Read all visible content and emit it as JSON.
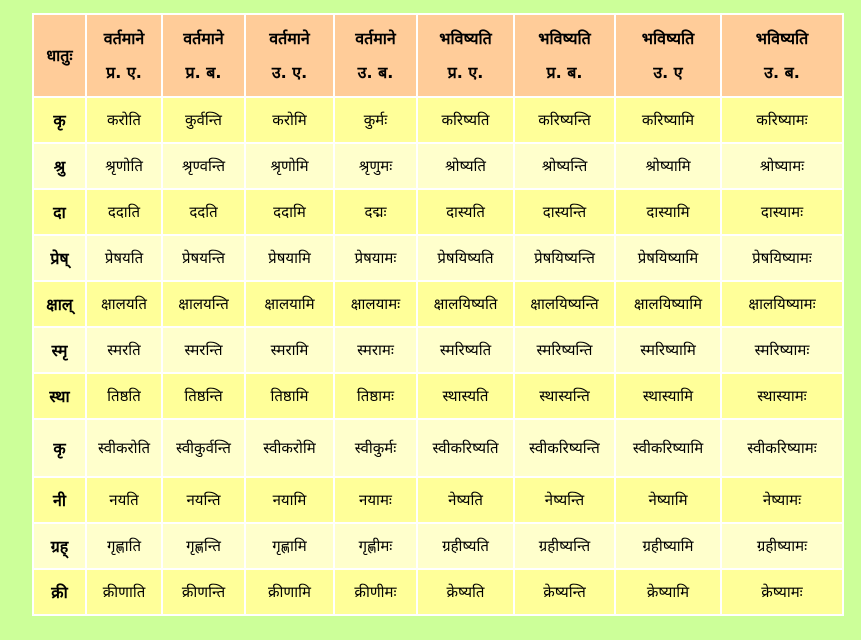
{
  "colors": {
    "page_bg": "#ccff99",
    "header_bg": "#ffcc99",
    "row_odd": "#ffff99",
    "row_even": "#ffffcc",
    "border": "#ffffff"
  },
  "table": {
    "headers": [
      {
        "line1": "धातुः",
        "line2": ""
      },
      {
        "line1": "वर्तमाने",
        "line2": "प्र. ए."
      },
      {
        "line1": "वर्तमाने",
        "line2": "प्र. ब."
      },
      {
        "line1": "वर्तमाने",
        "line2": "उ. ए."
      },
      {
        "line1": "वर्तमाने",
        "line2": "उ. ब."
      },
      {
        "line1": "भविष्यति",
        "line2": "प्र. ए."
      },
      {
        "line1": "भविष्यति",
        "line2": "प्र. ब."
      },
      {
        "line1": "भविष्यति",
        "line2": "उ. ए"
      },
      {
        "line1": "भविष्यति",
        "line2": "उ. ब."
      }
    ],
    "rows": [
      [
        "कृ",
        "करोति",
        "कुर्वन्ति",
        "करोमि",
        "कुर्मः",
        "करिष्यति",
        "करिष्यन्ति",
        "करिष्यामि",
        "करिष्यामः"
      ],
      [
        "श्रु",
        "श्रृणोति",
        "श्रृण्वन्ति",
        "श्रृणोमि",
        "श्रृणुमः",
        "श्रोष्यति",
        "श्रोष्यन्ति",
        "श्रोष्यामि",
        "श्रोष्यामः"
      ],
      [
        "दा",
        "ददाति",
        "ददति",
        "ददामि",
        "दद्मः",
        "दास्यति",
        "दास्यन्ति",
        "दास्यामि",
        "दास्यामः"
      ],
      [
        "प्रेष्",
        "प्रेषयति",
        "प्रेषयन्ति",
        "प्रेषयामि",
        "प्रेषयामः",
        "प्रेषयिष्यति",
        "प्रेषयिष्यन्ति",
        "प्रेषयिष्यामि",
        "प्रेषयिष्यामः"
      ],
      [
        "क्षाल्",
        "क्षालयति",
        "क्षालयन्ति",
        "क्षालयामि",
        "क्षालयामः",
        "क्षालयिष्यति",
        "क्षालयिष्यन्ति",
        "क्षालयिष्यामि",
        "क्षालयिष्यामः"
      ],
      [
        "स्मृ",
        "स्मरति",
        "स्मरन्ति",
        "स्मरामि",
        "स्मरामः",
        "स्मरिष्यति",
        "स्मरिष्यन्ति",
        "स्मरिष्यामि",
        "स्मरिष्यामः"
      ],
      [
        "स्था",
        "तिष्ठति",
        "तिष्ठन्ति",
        "तिष्ठामि",
        "तिष्ठामः",
        "स्थास्यति",
        "स्थास्यन्ति",
        "स्थास्यामि",
        "स्थास्यामः"
      ],
      [
        "कृ",
        "स्वीकरोति",
        "स्वीकुर्वन्ति",
        "स्वीकरोमि",
        "स्वीकुर्मः",
        "स्वीकरिष्यति",
        "स्वीकरिष्यन्ति",
        "स्वीकरिष्यामि",
        "स्वीकरिष्यामः"
      ],
      [
        "नी",
        "नयति",
        "नयन्ति",
        "नयामि",
        "नयामः",
        "नेष्यति",
        "नेष्यन्ति",
        "नेष्यामि",
        "नेष्यामः"
      ],
      [
        "ग्रह्",
        "गृह्णाति",
        "गृह्णन्ति",
        "गृह्णामि",
        "गृह्णीमः",
        "ग्रहीष्यति",
        "ग्रहीष्यन्ति",
        "ग्रहीष्यामि",
        "ग्रहीष्यामः"
      ],
      [
        "क्री",
        "क्रीणाति",
        "क्रीणन्ति",
        "क्रीणामि",
        "क्रीणीमः",
        "क्रेष्यति",
        "क्रेष्यन्ति",
        "क्रेष्यामि",
        "क्रेष्यामः"
      ]
    ]
  }
}
